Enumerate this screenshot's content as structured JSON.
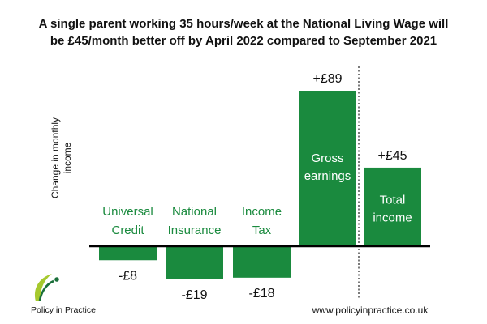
{
  "chart_data": {
    "type": "bar",
    "title_lines": [
      "A single parent working 35 hours/week at the National Living Wage will",
      "be £45/month better off by April 2022 compared to September 2021"
    ],
    "ylabel_lines": [
      "Change in monthly",
      "income"
    ],
    "categories": [
      {
        "lines": [
          "Universal",
          "Credit"
        ],
        "label_inside": false
      },
      {
        "lines": [
          "National",
          "Insurance"
        ],
        "label_inside": false
      },
      {
        "lines": [
          "Income",
          "Tax"
        ],
        "label_inside": false
      },
      {
        "lines": [
          "Gross",
          "earnings"
        ],
        "label_inside": true
      },
      {
        "lines": [
          "Total",
          "income"
        ],
        "label_inside": true
      }
    ],
    "values": [
      -8,
      -19,
      -18,
      89,
      45
    ],
    "value_labels": [
      "-£8",
      "-£19",
      "-£18",
      "+£89",
      "+£45"
    ],
    "ylim": [
      -25,
      100
    ],
    "grid": false,
    "legend": "none",
    "divider_before_category": 4,
    "colors": {
      "bar": "#1a8a3e",
      "category_text": "#1a8a3e",
      "axis": "#000000",
      "logo_green": "#a6c92e",
      "logo_dark": "#1a6f3a"
    }
  },
  "source": "www.policyinpractice.co.uk",
  "logo": {
    "name": "policy-in-practice-logo",
    "text": "Policy in Practice"
  }
}
